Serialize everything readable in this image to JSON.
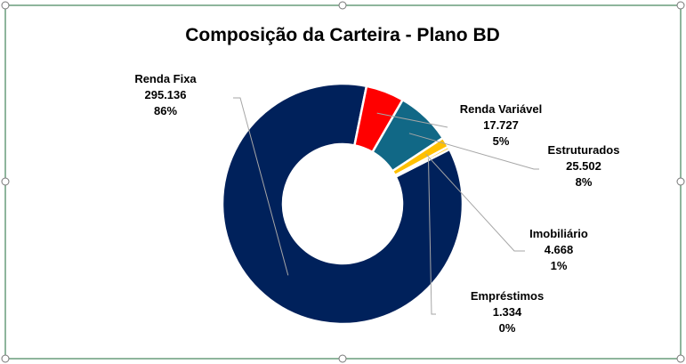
{
  "chart_data": {
    "type": "pie",
    "variant": "donut",
    "title": "Composição da Carteira - Plano BD",
    "legend": "none",
    "slices": [
      {
        "label": "Renda Fixa",
        "value_text": "295.136",
        "percent_text": "86%",
        "value": 295136,
        "color": "#00215B"
      },
      {
        "label": "Renda Variável",
        "value_text": "17.727",
        "percent_text": "5%",
        "value": 17727,
        "color": "#FF0000"
      },
      {
        "label": "Estruturados",
        "value_text": "25.502",
        "percent_text": "8%",
        "value": 25502,
        "color": "#116886"
      },
      {
        "label": "Imobiliário",
        "value_text": "4.668",
        "percent_text": "1%",
        "value": 4668,
        "color": "#FFC000"
      },
      {
        "label": "Empréstimos",
        "value_text": "1.334",
        "percent_text": "0%",
        "value": 1334,
        "color": "#FFC000"
      }
    ]
  }
}
